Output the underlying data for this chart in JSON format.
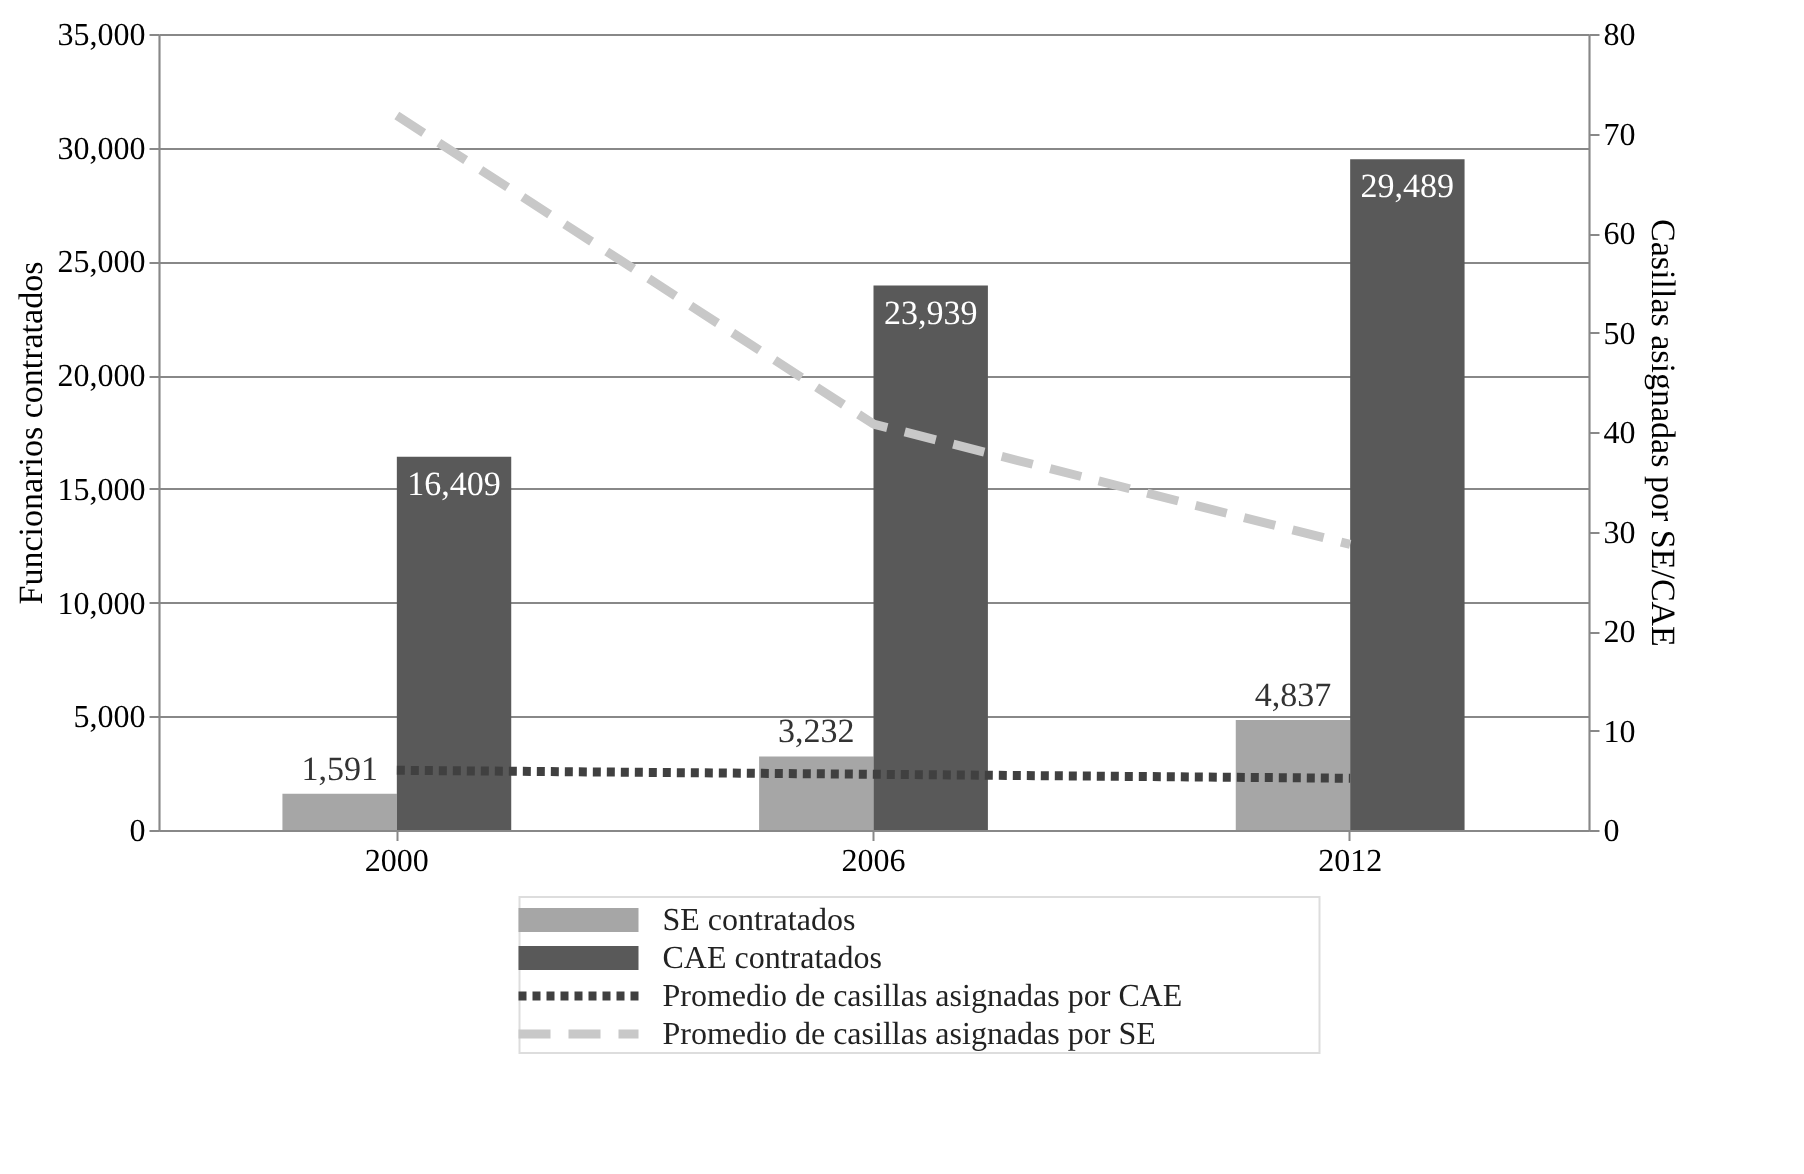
{
  "chart_data": {
    "type": "bar",
    "categories": [
      "2000",
      "2006",
      "2012"
    ],
    "ylabel": "Funcionarios contratados",
    "y2label": "Casillas asignadas por SE/CAE",
    "ylim": [
      0,
      35000
    ],
    "yticks": [
      0,
      {
        "value": 5000,
        "label": "5,000"
      },
      {
        "value": 10000,
        "label": "10,000"
      },
      {
        "value": 15000,
        "label": "15,000"
      },
      {
        "value": 20000,
        "label": "20,000"
      },
      {
        "value": 25000,
        "label": "25,000"
      },
      {
        "value": 30000,
        "label": "30,000"
      },
      {
        "value": 35000,
        "label": "35,000"
      }
    ],
    "y2lim": [
      0,
      80
    ],
    "y2ticks": [
      0,
      10,
      20,
      30,
      40,
      50,
      60,
      70,
      80
    ],
    "grid": "y",
    "legend": "bottom",
    "series": [
      {
        "name": "SE contratados",
        "color": "#a6a6a6",
        "values": [
          1591,
          3232,
          4837
        ],
        "value_labels": [
          "1,591",
          "3,232",
          "4,837"
        ]
      },
      {
        "name": "CAE contratados",
        "color": "#595959",
        "values": [
          16409,
          23939,
          29489
        ],
        "value_labels": [
          "16,409",
          "23,939",
          "29,489"
        ]
      },
      {
        "name": "Promedio de casillas asignadas por CAE",
        "type": "line",
        "axis": "y2",
        "line_style": "dotted",
        "color": "#404040",
        "values": [
          6.0,
          5.6,
          5.2
        ]
      },
      {
        "name": "Promedio de casillas asignadas por SE",
        "type": "line",
        "axis": "y2",
        "line_style": "dashed",
        "color": "#c8c8c8",
        "values": [
          71.8,
          40.8,
          28.7
        ]
      }
    ]
  }
}
